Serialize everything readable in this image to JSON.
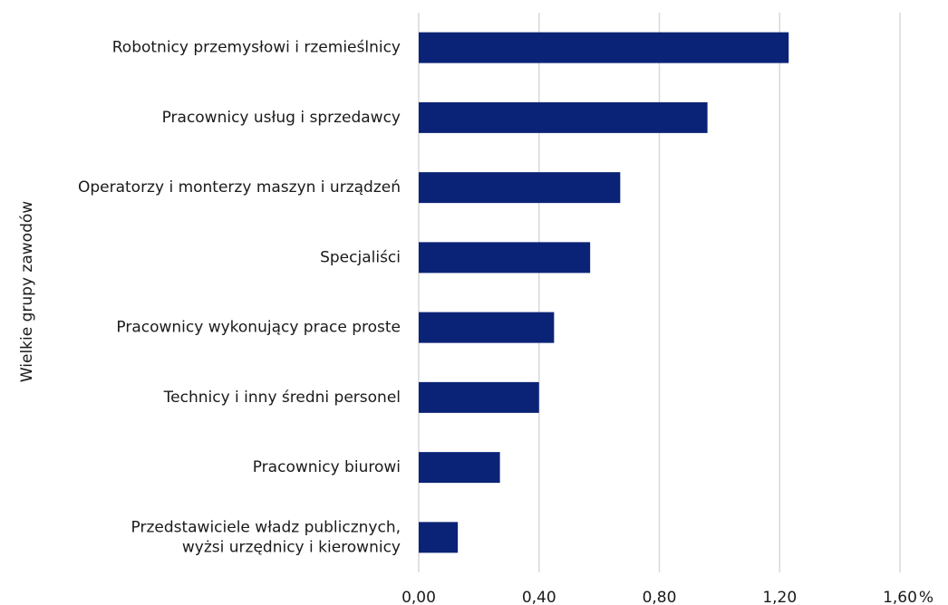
{
  "chart_data": {
    "type": "hbar",
    "ylabel": "Wielkie grupy zawodów",
    "xlabel": "%",
    "categories": [
      "Robotnicy przemysłowi i rzemieślnicy",
      "Pracownicy usług i sprzedawcy",
      "Operatorzy i monterzy maszyn i urządzeń",
      "Specjaliści",
      "Pracownicy wykonujący prace proste",
      "Technicy i inny średni personel",
      "Pracownicy biurowi",
      "Przedstawiciele władz publicznych,\nwyżsi urzędnicy i kierownicy"
    ],
    "values": [
      1.23,
      0.96,
      0.67,
      0.57,
      0.45,
      0.4,
      0.27,
      0.13
    ],
    "color": "#0b2376",
    "xlim": [
      0,
      1.6
    ],
    "xticks": [
      {
        "value": 0,
        "label": "0,00"
      },
      {
        "value": 0.4,
        "label": "0,40"
      },
      {
        "value": 0.8,
        "label": "0,80"
      },
      {
        "value": 1.2,
        "label": "1,20"
      },
      {
        "value": 1.6,
        "label": "1,60"
      }
    ],
    "grid": true
  }
}
